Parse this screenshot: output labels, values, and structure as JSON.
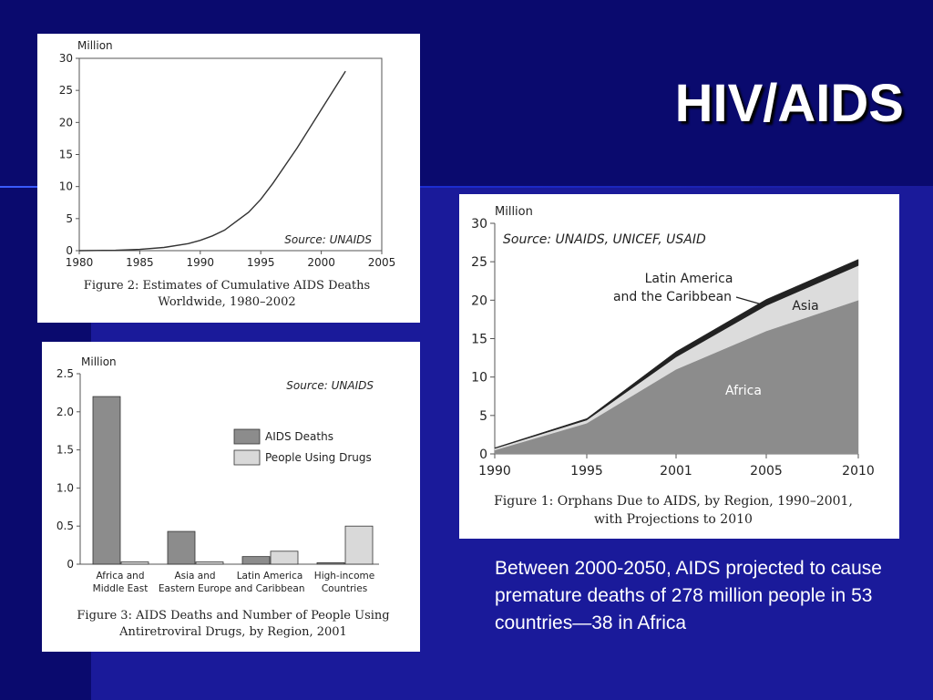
{
  "slide": {
    "title": "HIV/AIDS",
    "caption": "Between 2000-2050, AIDS projected to cause premature deaths of 278 million people in 53 countries—38 in Africa",
    "colors": {
      "background": "#1a1a9a",
      "header": "#0a0a6e",
      "title": "#ffffff"
    }
  },
  "chart_data": [
    {
      "type": "line",
      "ylabel": "Million",
      "source": "Source: UNAIDS",
      "caption_line1": "Figure 2: Estimates of Cumulative AIDS Deaths",
      "caption_line2": "Worldwide, 1980–2002",
      "xlim": [
        1980,
        2005
      ],
      "ylim": [
        0,
        30
      ],
      "xticks": [
        1980,
        1985,
        1990,
        1995,
        2000,
        2005
      ],
      "yticks": [
        0,
        5,
        10,
        15,
        20,
        25,
        30
      ],
      "x": [
        1980,
        1983,
        1985,
        1987,
        1989,
        1990,
        1991,
        1992,
        1994,
        1995,
        1996,
        1998,
        2000,
        2002
      ],
      "y": [
        0,
        0.05,
        0.2,
        0.5,
        1.1,
        1.6,
        2.3,
        3.2,
        6,
        8,
        10.5,
        16,
        22,
        28
      ]
    },
    {
      "type": "bar",
      "ylabel": "Million",
      "source": "Source: UNAIDS",
      "caption_line1": "Figure 3: AIDS Deaths and Number of People Using",
      "caption_line2": "Antiretroviral Drugs, by Region, 2001",
      "ylim": [
        0,
        2.5
      ],
      "yticks": [
        "0",
        "0.5",
        "1.0",
        "1.5",
        "2.0",
        "2.5"
      ],
      "categories": [
        [
          "Africa and",
          "Middle East"
        ],
        [
          "Asia and",
          "Eastern Europe"
        ],
        [
          "Latin America",
          "and Caribbean"
        ],
        [
          "High-income",
          "Countries"
        ]
      ],
      "series": [
        {
          "name": "AIDS Deaths",
          "color": "#8c8c8c",
          "values": [
            2.2,
            0.43,
            0.1,
            0.02
          ]
        },
        {
          "name": "People Using Drugs",
          "color": "#d9d9d9",
          "values": [
            0.03,
            0.03,
            0.17,
            0.5
          ]
        }
      ]
    },
    {
      "type": "area",
      "ylabel": "Million",
      "source": "Source: UNAIDS, UNICEF, USAID",
      "caption_line1": "Figure 1: Orphans Due to AIDS, by Region, 1990–2001,",
      "caption_line2": "with Projections to 2010",
      "x": [
        1990,
        1995,
        2001,
        2005,
        2010
      ],
      "xticks": [
        "1990",
        "1995",
        "2001",
        "2005",
        "2010"
      ],
      "yticks": [
        0,
        5,
        10,
        15,
        20,
        25,
        30
      ],
      "ylim": [
        0,
        30
      ],
      "series": [
        {
          "name": "Africa",
          "color": "#8c8c8c",
          "values": [
            0.5,
            4,
            11,
            16,
            20
          ]
        },
        {
          "name": "Asia",
          "color": "#dcdcdc",
          "values": [
            0.2,
            0.4,
            1.6,
            3.3,
            4.5
          ]
        },
        {
          "name": "Latin America and the Caribbean",
          "label_line1": "Latin America",
          "label_line2": "and the Caribbean",
          "color": "#222222",
          "values": [
            0.1,
            0.2,
            0.7,
            0.8,
            0.8
          ]
        }
      ]
    }
  ]
}
